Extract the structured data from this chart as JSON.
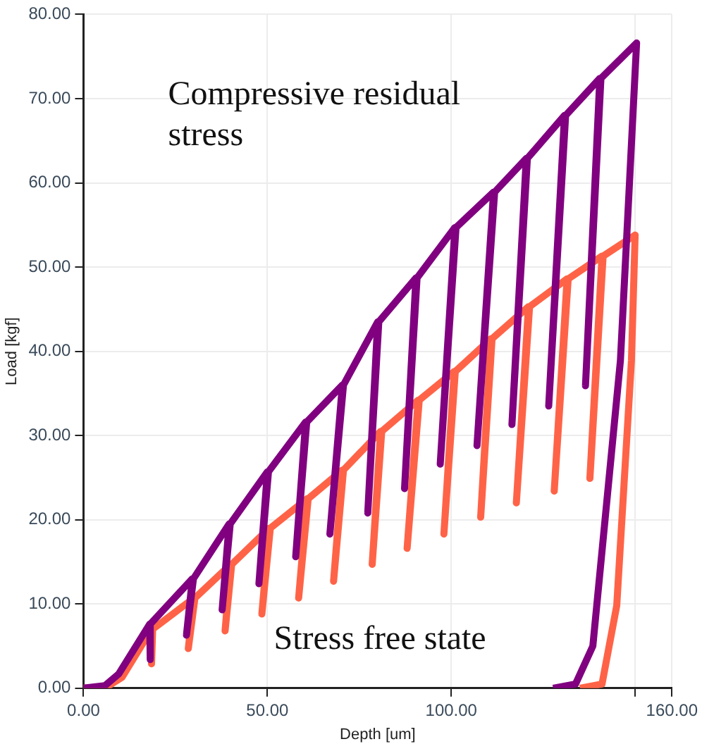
{
  "chart_data": {
    "type": "line",
    "xlabel": "Depth [um]",
    "ylabel": "Load [kgf]",
    "xlim": [
      0,
      160
    ],
    "xticks": [
      {
        "value": 0,
        "label": "0.00"
      },
      {
        "value": 50,
        "label": "50.00"
      },
      {
        "value": 100,
        "label": "100.00"
      },
      {
        "value": 150,
        "label": null
      },
      {
        "value": 160,
        "label": "160.00"
      }
    ],
    "ylim": [
      0,
      80
    ],
    "yticks": [
      {
        "value": 0,
        "label": "0.00"
      },
      {
        "value": 10,
        "label": "10.00"
      },
      {
        "value": 20,
        "label": "20.00"
      },
      {
        "value": 30,
        "label": "30.00"
      },
      {
        "value": 40,
        "label": "40.00"
      },
      {
        "value": 50,
        "label": "50.00"
      },
      {
        "value": 60,
        "label": "60.00"
      },
      {
        "value": 70,
        "label": "70.00"
      },
      {
        "value": 80,
        "label": "80.00"
      }
    ],
    "grid": true,
    "legend": false,
    "marker": "none",
    "line_style": "solid",
    "annotations": [
      "Compressive residual stress",
      "Stress free state"
    ],
    "series": [
      {
        "color": "#800080",
        "x": [
          0,
          5.8,
          9.6,
          18,
          18,
          18.3,
          29.6,
          28,
          29.9,
          39.6,
          37.7,
          39.9,
          50,
          47.7,
          50.3,
          60.4,
          57.7,
          60.7,
          70.4,
          67,
          70.7,
          80,
          77.3,
          80.3,
          90.4,
          87.3,
          90.7,
          101,
          97,
          101.3,
          111.5,
          107,
          111.8,
          120.4,
          116.5,
          120.7,
          130.8,
          126.5,
          131.1,
          140.4,
          136.5,
          140.7,
          150.4,
          146,
          138.5,
          133.8,
          127.7
        ],
        "values": [
          0,
          0.3,
          1.7,
          7.6,
          3.4,
          7.6,
          13,
          6.3,
          13,
          19.5,
          9.3,
          19.5,
          25.7,
          12.4,
          25.7,
          31.6,
          15.6,
          31.6,
          36,
          18.3,
          36,
          43.5,
          20.8,
          43.5,
          48.7,
          23.7,
          48.7,
          54.7,
          26.6,
          54.7,
          58.9,
          28.8,
          58.9,
          62.9,
          31.3,
          62.9,
          68,
          33.5,
          68,
          72.4,
          35.9,
          72.4,
          76.6,
          38.9,
          5,
          0.5,
          0
        ]
      },
      {
        "color": "#ff6347",
        "x": [
          0,
          6.5,
          10.5,
          18.5,
          18.5,
          18.8,
          30,
          28.5,
          30.3,
          40,
          38.5,
          40.3,
          50.5,
          48.5,
          50.8,
          60.8,
          58.5,
          61.1,
          70.4,
          68,
          70.7,
          80.8,
          78.5,
          81.1,
          91,
          88,
          91.3,
          100.8,
          98,
          101.1,
          110.8,
          108,
          111.1,
          121,
          117.7,
          121.3,
          131.5,
          128,
          131.8,
          141,
          137.7,
          141.3,
          150,
          149,
          145,
          141,
          135
        ],
        "values": [
          0,
          0.2,
          1.3,
          7,
          2.9,
          7,
          10.7,
          4.7,
          10.7,
          14.7,
          6.8,
          14.7,
          19,
          8.8,
          19,
          22.5,
          10.7,
          22.5,
          25.9,
          12.7,
          25.9,
          30.5,
          14.7,
          30.5,
          34.2,
          16.6,
          34.2,
          37.6,
          18.3,
          37.6,
          41.5,
          20.3,
          41.5,
          45.3,
          22,
          45.3,
          48.6,
          23.4,
          48.6,
          51.3,
          24.9,
          51.3,
          53.8,
          38.9,
          9.8,
          0.5,
          0
        ]
      }
    ]
  }
}
